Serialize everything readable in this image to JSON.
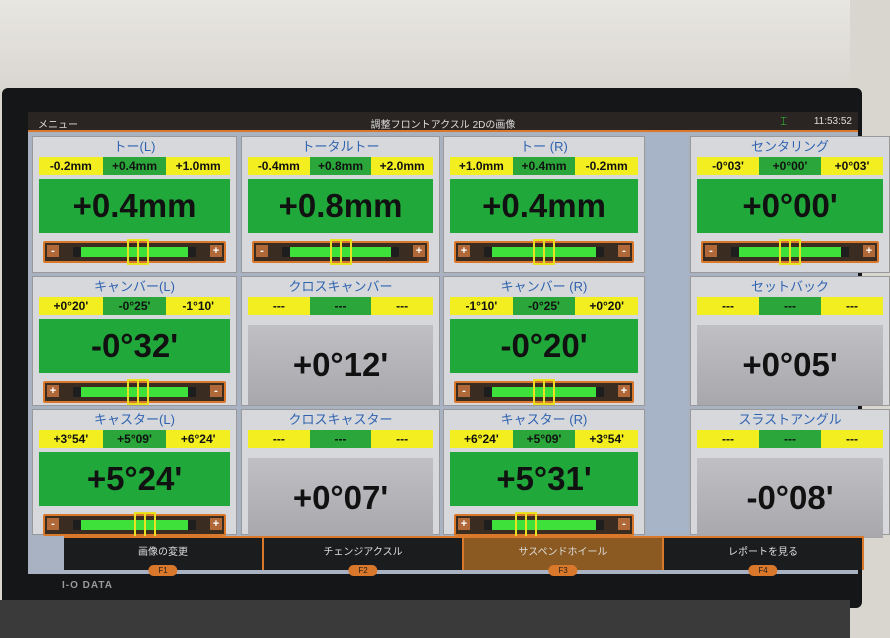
{
  "header": {
    "menu_label": "メニュー",
    "title": "調整フロントアクスル 2Dの画像",
    "time": "11:53:52",
    "status_icon": "lift-icon"
  },
  "panels": [
    {
      "id": "toe-left",
      "title": "トー(L)",
      "ranges": [
        "-0.2mm",
        "+0.4mm",
        "+1.0mm"
      ],
      "value": "+0.4mm",
      "style": "green",
      "slider": {
        "left": "-",
        "right": "+",
        "position": 0.52
      }
    },
    {
      "id": "total-toe",
      "title": "トータルトー",
      "ranges": [
        "-0.4mm",
        "+0.8mm",
        "+2.0mm"
      ],
      "value": "+0.8mm",
      "style": "green",
      "slider": {
        "left": "-",
        "right": "+",
        "position": 0.5
      }
    },
    {
      "id": "toe-right",
      "title": "トー (R)",
      "ranges": [
        "+1.0mm",
        "+0.4mm",
        "-0.2mm"
      ],
      "value": "+0.4mm",
      "style": "green",
      "slider": {
        "left": "+",
        "right": "-",
        "position": 0.5
      }
    },
    {
      "id": "centering",
      "title": "センタリング",
      "ranges": [
        "-0°03'",
        "+0°00'",
        "+0°03'"
      ],
      "value": "+0°00'",
      "style": "green",
      "slider": {
        "left": "-",
        "right": "+",
        "position": 0.5
      }
    },
    {
      "id": "camber-left",
      "title": "キャンバー(L)",
      "ranges": [
        "+0°20'",
        "-0°25'",
        "-1°10'"
      ],
      "value": "-0°32'",
      "style": "green",
      "slider": {
        "left": "+",
        "right": "-",
        "position": 0.52
      }
    },
    {
      "id": "cross-camber",
      "title": "クロスキャンバー",
      "ranges": [
        "---",
        "---",
        "---"
      ],
      "value": "+0°12'",
      "style": "grey"
    },
    {
      "id": "camber-right",
      "title": "キャンバー (R)",
      "ranges": [
        "-1°10'",
        "-0°25'",
        "+0°20'"
      ],
      "value": "-0°20'",
      "style": "green",
      "slider": {
        "left": "-",
        "right": "+",
        "position": 0.5
      }
    },
    {
      "id": "setback",
      "title": "セットバック",
      "ranges": [
        "---",
        "---",
        "---"
      ],
      "value": "+0°05'",
      "style": "grey"
    },
    {
      "id": "caster-left",
      "title": "キャスター(L)",
      "ranges": [
        "+3°54'",
        "+5°09'",
        "+6°24'"
      ],
      "value": "+5°24'",
      "style": "green",
      "slider": {
        "left": "-",
        "right": "+",
        "position": 0.56
      }
    },
    {
      "id": "cross-caster",
      "title": "クロスキャスター",
      "ranges": [
        "---",
        "---",
        "---"
      ],
      "value": "+0°07'",
      "style": "grey"
    },
    {
      "id": "caster-right",
      "title": "キャスター (R)",
      "ranges": [
        "+6°24'",
        "+5°09'",
        "+3°54'"
      ],
      "value": "+5°31'",
      "style": "green",
      "slider": {
        "left": "+",
        "right": "-",
        "position": 0.4
      }
    },
    {
      "id": "thrust-angle",
      "title": "スラストアングル",
      "ranges": [
        "---",
        "---",
        "---"
      ],
      "value": "-0°08'",
      "style": "grey"
    }
  ],
  "footer": [
    {
      "label": "画像の変更",
      "key": "F1",
      "active": false
    },
    {
      "label": "チェンジアクスル",
      "key": "F2",
      "active": false
    },
    {
      "label": "サスペンドホイール",
      "key": "F3",
      "active": true
    },
    {
      "label": "レポートを見る",
      "key": "F4",
      "active": false
    }
  ],
  "monitor_brand": "I-O DATA"
}
